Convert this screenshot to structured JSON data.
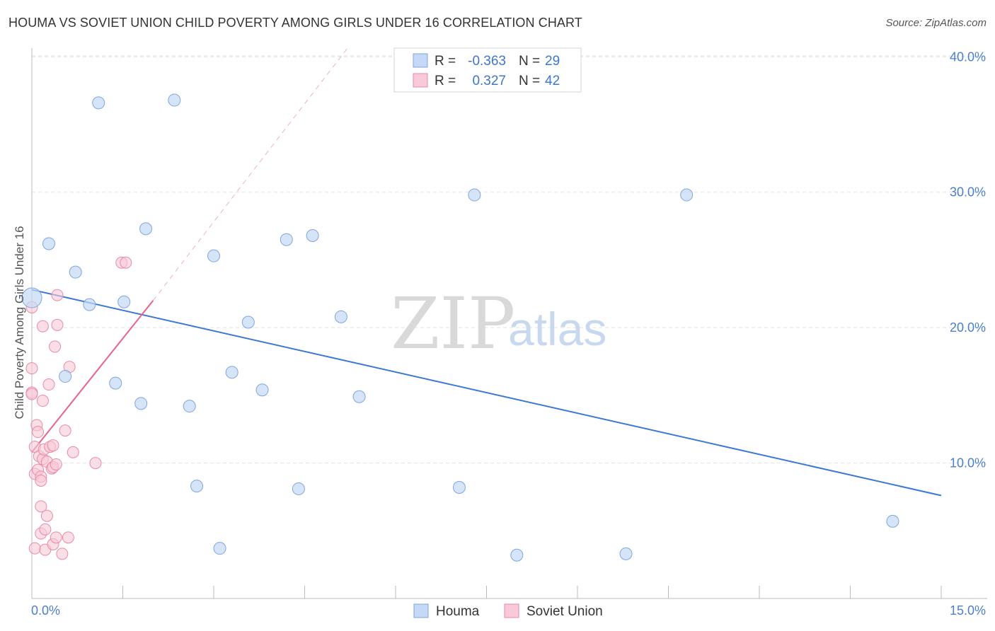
{
  "title": "HOUMA VS SOVIET UNION CHILD POVERTY AMONG GIRLS UNDER 16 CORRELATION CHART",
  "source": "Source: ZipAtlas.com",
  "colors": {
    "houma_fill": "#c5d8f5",
    "houma_stroke": "#7fa6de",
    "houma_line": "#3a78d4",
    "soviet_fill": "#f8cad7",
    "soviet_stroke": "#e98aa8",
    "soviet_line": "#e8638d",
    "grid": "#e3e3e3",
    "tick_text": "#4a7fd0"
  },
  "watermark": {
    "zip": "ZIP",
    "atlas": "atlas"
  },
  "legend": {
    "houma": {
      "r_label": "R =",
      "r_value": "-0.363",
      "n_label": "N =",
      "n_value": "29"
    },
    "soviet": {
      "r_label": "R =",
      "r_value": "0.327",
      "n_label": "N =",
      "n_value": "42"
    }
  },
  "chart_data": {
    "type": "scatter",
    "title": "HOUMA VS SOVIET UNION CHILD POVERTY AMONG GIRLS UNDER 16 CORRELATION CHART",
    "xlabel": "",
    "ylabel": "Child Poverty Among Girls Under 16",
    "xlim": [
      0,
      15
    ],
    "ylim": [
      0,
      42
    ],
    "x_tick_labels": [
      "0.0%",
      "15.0%"
    ],
    "y_ticks": [
      10,
      20,
      30,
      40
    ],
    "y_tick_labels": [
      "10.0%",
      "20.0%",
      "30.0%",
      "40.0%"
    ],
    "legend_position": "bottom-center",
    "series": [
      {
        "name": "Houma",
        "points": [
          [
            0.0,
            22.2
          ],
          [
            0.28,
            26.2
          ],
          [
            0.55,
            16.4
          ],
          [
            0.72,
            24.1
          ],
          [
            0.95,
            21.7
          ],
          [
            1.1,
            36.6
          ],
          [
            1.38,
            15.9
          ],
          [
            1.52,
            21.9
          ],
          [
            1.8,
            14.4
          ],
          [
            1.88,
            27.3
          ],
          [
            2.35,
            36.8
          ],
          [
            2.6,
            14.2
          ],
          [
            2.72,
            8.3
          ],
          [
            3.0,
            25.3
          ],
          [
            3.1,
            3.7
          ],
          [
            3.3,
            16.7
          ],
          [
            3.57,
            20.4
          ],
          [
            3.8,
            15.4
          ],
          [
            4.2,
            26.5
          ],
          [
            4.4,
            8.1
          ],
          [
            4.63,
            26.8
          ],
          [
            5.1,
            20.8
          ],
          [
            5.4,
            14.9
          ],
          [
            7.05,
            8.2
          ],
          [
            7.3,
            29.8
          ],
          [
            8.0,
            3.2
          ],
          [
            9.8,
            3.3
          ],
          [
            10.8,
            29.8
          ],
          [
            14.2,
            5.7
          ]
        ],
        "trend": {
          "x": [
            0,
            15
          ],
          "y": [
            22.8,
            7.6
          ]
        }
      },
      {
        "name": "Soviet Union",
        "points": [
          [
            0.0,
            21.5
          ],
          [
            0.0,
            17.0
          ],
          [
            0.0,
            15.2
          ],
          [
            0.0,
            15.1
          ],
          [
            0.05,
            9.2
          ],
          [
            0.05,
            11.2
          ],
          [
            0.05,
            3.7
          ],
          [
            0.08,
            12.8
          ],
          [
            0.1,
            12.3
          ],
          [
            0.1,
            9.5
          ],
          [
            0.12,
            10.5
          ],
          [
            0.15,
            9.0
          ],
          [
            0.15,
            8.7
          ],
          [
            0.15,
            6.8
          ],
          [
            0.15,
            4.8
          ],
          [
            0.18,
            20.1
          ],
          [
            0.18,
            14.6
          ],
          [
            0.18,
            10.3
          ],
          [
            0.2,
            11.0
          ],
          [
            0.22,
            5.1
          ],
          [
            0.22,
            3.6
          ],
          [
            0.25,
            10.1
          ],
          [
            0.25,
            6.1
          ],
          [
            0.28,
            15.8
          ],
          [
            0.3,
            11.2
          ],
          [
            0.33,
            9.6
          ],
          [
            0.35,
            11.3
          ],
          [
            0.35,
            9.7
          ],
          [
            0.35,
            4.0
          ],
          [
            0.38,
            18.6
          ],
          [
            0.4,
            9.9
          ],
          [
            0.4,
            4.5
          ],
          [
            0.42,
            22.4
          ],
          [
            0.42,
            20.2
          ],
          [
            0.5,
            3.3
          ],
          [
            0.55,
            12.4
          ],
          [
            0.6,
            4.5
          ],
          [
            0.62,
            17.1
          ],
          [
            0.68,
            10.8
          ],
          [
            1.05,
            10.0
          ],
          [
            1.48,
            24.8
          ],
          [
            1.55,
            24.8
          ]
        ],
        "trend": {
          "x": [
            0,
            2.0
          ],
          "y": [
            10.8,
            22.0
          ]
        },
        "trend_extended": {
          "x": [
            2.0,
            5.2
          ],
          "y": [
            22.0,
            40.6
          ]
        }
      }
    ]
  }
}
